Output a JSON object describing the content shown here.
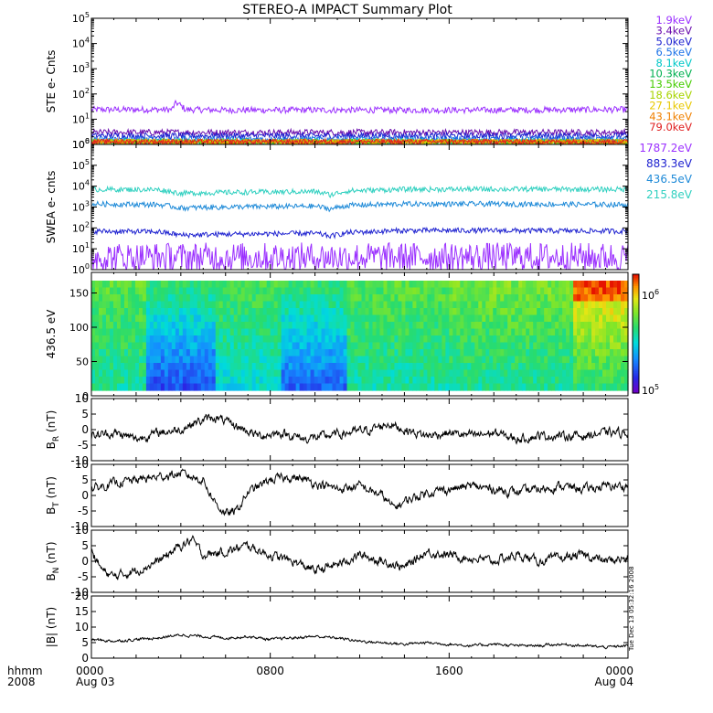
{
  "title": "STEREO-A IMPACT Summary Plot",
  "stamp": "Tue Dec 13 05:32:16 2008",
  "bottom_axis": {
    "row1_left": "hhmm",
    "row2_left": "2008",
    "ticks": [
      {
        "hour": 0,
        "label": "0000",
        "sub": "Aug 03"
      },
      {
        "hour": 8,
        "label": "0800",
        "sub": ""
      },
      {
        "hour": 16,
        "label": "1600",
        "sub": ""
      },
      {
        "hour": 24,
        "label": "0000",
        "sub": "Aug 04"
      }
    ]
  },
  "colors": {
    "line": "#000000",
    "frame": "#000000"
  },
  "chart_data": [
    {
      "id": "ste",
      "type": "line",
      "ylabel": "STE e- Cnts",
      "yscale": "log",
      "ylim": [
        1,
        100000
      ],
      "ytick_labels": [
        "10^0",
        "10^1",
        "10^2",
        "10^3",
        "10^4",
        "10^5"
      ],
      "x": [
        0,
        3,
        3.6,
        3.8,
        4.2,
        6,
        12,
        18,
        24
      ],
      "series": [
        {
          "name": "1.9keV",
          "color": "#9b30ff",
          "values": [
            24,
            24,
            24,
            45,
            24,
            23,
            23,
            23,
            24
          ]
        },
        {
          "name": "3.4keV",
          "color": "#6a0dad",
          "values": [
            3,
            3,
            3,
            3,
            3,
            3,
            3,
            3,
            3
          ]
        },
        {
          "name": "5.0keV",
          "color": "#1e22d0",
          "values": [
            2.2,
            2.2,
            2.2,
            2.2,
            2.2,
            2.2,
            2.2,
            2.2,
            2.2
          ]
        },
        {
          "name": "6.5keV",
          "color": "#1e73e8",
          "values": [
            1.6,
            1.6,
            1.6,
            1.6,
            1.6,
            1.6,
            1.6,
            1.6,
            1.6
          ]
        },
        {
          "name": "8.1keV",
          "color": "#00c8c8",
          "values": [
            1.3,
            1.3,
            1.3,
            1.3,
            1.3,
            1.3,
            1.3,
            1.3,
            1.3
          ]
        },
        {
          "name": "10.3keV",
          "color": "#00b050",
          "values": [
            1.1,
            1.1,
            1.1,
            1.1,
            1.1,
            1.1,
            1.1,
            1.1,
            1.1
          ]
        },
        {
          "name": "13.5keV",
          "color": "#44cc00",
          "values": [
            1,
            1,
            1,
            1,
            1,
            1,
            1,
            1,
            1
          ]
        },
        {
          "name": "18.6keV",
          "color": "#a8d400",
          "values": [
            1,
            1,
            1,
            1,
            1,
            1,
            1,
            1,
            1
          ]
        },
        {
          "name": "27.1keV",
          "color": "#e8c800",
          "values": [
            1,
            1,
            1,
            1,
            1,
            1,
            1,
            1,
            1
          ]
        },
        {
          "name": "43.1keV",
          "color": "#f08000",
          "values": [
            1,
            1,
            1,
            1,
            1,
            1,
            1,
            1,
            1
          ]
        },
        {
          "name": "79.0keV",
          "color": "#e02020",
          "values": [
            1,
            1,
            1,
            1,
            1,
            1,
            1,
            1,
            1
          ]
        }
      ]
    },
    {
      "id": "swea",
      "type": "line",
      "ylabel": "SWEA e- cnts",
      "yscale": "log",
      "ylim": [
        1,
        1000000
      ],
      "ytick_labels": [
        "10^0",
        "10^1",
        "10^2",
        "10^3",
        "10^4",
        "10^5",
        "10^6"
      ],
      "x": [
        0,
        3,
        4,
        6,
        10,
        10.7,
        11.5,
        14,
        18,
        24
      ],
      "series": [
        {
          "name": "1787.2eV",
          "color": "#9b30ff",
          "values": [
            4,
            4,
            4,
            4,
            4,
            4,
            4,
            4,
            4,
            4
          ]
        },
        {
          "name": "883.3eV",
          "color": "#1e22d0",
          "values": [
            70,
            65,
            45,
            50,
            55,
            40,
            60,
            75,
            75,
            70
          ]
        },
        {
          "name": "436.5eV",
          "color": "#1e8ad8",
          "values": [
            1400,
            1300,
            900,
            1000,
            1100,
            800,
            1200,
            1400,
            1400,
            1300
          ]
        },
        {
          "name": "215.8eV",
          "color": "#30d0c0",
          "values": [
            7000,
            6800,
            4500,
            5000,
            5500,
            3800,
            6000,
            7000,
            7200,
            7000
          ]
        }
      ]
    },
    {
      "id": "pad",
      "type": "heatmap",
      "ylabel": "436.5 eV",
      "ylim": [
        0,
        180
      ],
      "ytick_labels": [
        "0",
        "50",
        "100",
        "150"
      ],
      "colorbar": {
        "min_label": "10^5",
        "max_label": "10^6",
        "min": 100000,
        "max": 1000000
      },
      "time_segments": [
        {
          "t0": 0,
          "t1": 2.5,
          "low": 0.5,
          "high": 0.62
        },
        {
          "t0": 2.5,
          "t1": 5.5,
          "low": 0.18,
          "high": 0.55
        },
        {
          "t0": 5.5,
          "t1": 8.5,
          "low": 0.42,
          "high": 0.6
        },
        {
          "t0": 8.5,
          "t1": 11.5,
          "low": 0.22,
          "high": 0.56
        },
        {
          "t0": 11.5,
          "t1": 16,
          "low": 0.48,
          "high": 0.62
        },
        {
          "t0": 16,
          "t1": 21.5,
          "low": 0.5,
          "high": 0.66
        },
        {
          "t0": 21.5,
          "t1": 24,
          "low": 0.55,
          "high": 0.85
        }
      ]
    },
    {
      "id": "br",
      "type": "line",
      "ylabel": "B_R (nT)",
      "ylim": [
        -10,
        10
      ],
      "ytick_labels": [
        "-10",
        "-5",
        "0",
        "5",
        "10"
      ],
      "x": [
        0,
        1,
        2,
        3,
        4,
        4.5,
        5.5,
        6.5,
        7.5,
        8.5,
        9.5,
        10.5,
        11.5,
        12.5,
        13.3,
        14,
        15,
        16,
        17,
        18,
        19,
        20,
        21,
        22,
        23,
        24
      ],
      "values": [
        -2,
        -1,
        -3,
        -1,
        0,
        2,
        4,
        1,
        -2,
        -1,
        -3,
        -2,
        -1,
        0,
        2,
        0,
        -2,
        -1,
        -2,
        -1,
        -3,
        -2,
        -2,
        -2,
        -1,
        -1
      ]
    },
    {
      "id": "bt",
      "type": "line",
      "ylabel": "B_T (nT)",
      "ylim": [
        -10,
        10
      ],
      "ytick_labels": [
        "-10",
        "-5",
        "0",
        "5",
        "10"
      ],
      "x": [
        0,
        1,
        2,
        3,
        4,
        5,
        5.5,
        6,
        6.5,
        7,
        8,
        9,
        10,
        11,
        12,
        13,
        13.5,
        14,
        15,
        16,
        17,
        18,
        19,
        20,
        21,
        22,
        23,
        24
      ],
      "values": [
        2,
        4,
        5,
        6,
        7,
        5,
        -2,
        -6,
        -5,
        1,
        5,
        6,
        4,
        2,
        3,
        0,
        -4,
        -2,
        1,
        2,
        3,
        2,
        1,
        2,
        3,
        2,
        3,
        3
      ]
    },
    {
      "id": "bn",
      "type": "line",
      "ylabel": "B_N (nT)",
      "ylim": [
        -10,
        10
      ],
      "ytick_labels": [
        "-10",
        "-5",
        "0",
        "5",
        "10"
      ],
      "x": [
        0,
        0.5,
        1,
        2,
        3,
        4,
        4.5,
        5,
        6,
        7,
        8,
        9,
        10,
        11,
        12,
        13,
        14,
        15,
        16,
        17,
        18,
        19,
        20,
        21,
        22,
        23,
        24
      ],
      "values": [
        3,
        -3,
        -5,
        -3,
        0,
        5,
        7,
        2,
        3,
        5,
        2,
        0,
        -3,
        -1,
        2,
        0,
        -2,
        3,
        2,
        1,
        0,
        2,
        0,
        1,
        2,
        0,
        1
      ]
    },
    {
      "id": "bmag",
      "type": "line",
      "ylabel": "|B| (nT)",
      "ylim": [
        0,
        20
      ],
      "ytick_labels": [
        "0",
        "5",
        "10",
        "15",
        "20"
      ],
      "x": [
        0,
        1,
        2,
        3,
        4,
        5,
        6,
        7,
        8,
        9,
        10,
        11,
        12,
        13,
        14,
        15,
        16,
        17,
        18,
        19,
        20,
        21,
        22,
        23,
        24
      ],
      "values": [
        6,
        5.5,
        6,
        6.5,
        7.5,
        7,
        6.5,
        7,
        6,
        6.5,
        7,
        6.5,
        5.5,
        5,
        4.5,
        5,
        4.5,
        4,
        4.5,
        4,
        4,
        4.5,
        4,
        3.5,
        4
      ]
    }
  ]
}
